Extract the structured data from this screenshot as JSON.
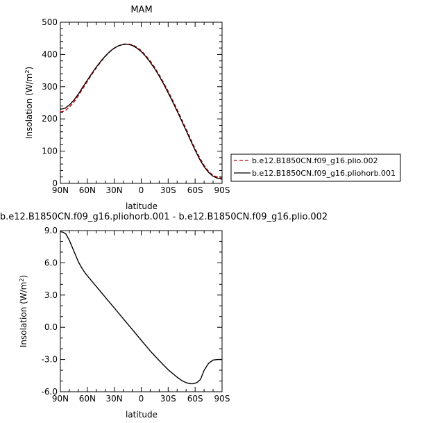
{
  "chart_data": [
    {
      "type": "line",
      "title": "MAM",
      "xlabel": "latitude",
      "ylabel": "Insolation (W/m²)",
      "ylabel_main": "Insolation (W/m",
      "ylabel_sup": "2",
      "ylabel_close": ")",
      "xlim": [
        90,
        -90
      ],
      "ylim": [
        0,
        500
      ],
      "x_ticks": [
        90,
        60,
        30,
        0,
        -30,
        -60,
        -90
      ],
      "x_tick_labels": [
        "90N",
        "60N",
        "30N",
        "0",
        "30S",
        "60S",
        "90S"
      ],
      "y_ticks": [
        0,
        100,
        200,
        300,
        400,
        500
      ],
      "y_tick_labels": [
        "0",
        "100",
        "200",
        "300",
        "400",
        "500"
      ],
      "legend_position": "right",
      "series": [
        {
          "name": "b.e12.B1850CN.f09_g16.plio.002",
          "color": "#cc0000",
          "dash": true,
          "x": [
            90,
            85,
            80,
            75,
            70,
            65,
            60,
            55,
            50,
            45,
            40,
            35,
            30,
            25,
            20,
            15,
            10,
            5,
            0,
            -5,
            -10,
            -15,
            -20,
            -25,
            -30,
            -35,
            -40,
            -45,
            -50,
            -55,
            -60,
            -65,
            -70,
            -75,
            -80,
            -85,
            -90
          ],
          "y": [
            221,
            225,
            236,
            252,
            272,
            294,
            316,
            338,
            358,
            377,
            394,
            408,
            419,
            427,
            432,
            433,
            430,
            423,
            412,
            397,
            380,
            360,
            337,
            312,
            286,
            258,
            229,
            199,
            169,
            138,
            108,
            80,
            56,
            37,
            25,
            19,
            16
          ]
        },
        {
          "name": "b.e12.B1850CN.f09_g16.pliohorb.001",
          "color": "#000000",
          "dash": false,
          "x": [
            90,
            85,
            80,
            75,
            70,
            65,
            60,
            55,
            50,
            45,
            40,
            35,
            30,
            25,
            20,
            15,
            10,
            5,
            0,
            -5,
            -10,
            -15,
            -20,
            -25,
            -30,
            -35,
            -40,
            -45,
            -50,
            -55,
            -60,
            -65,
            -70,
            -75,
            -80,
            -85,
            -90
          ],
          "y": [
            230,
            233,
            243,
            258,
            277,
            299,
            320,
            341,
            361,
            379,
            395,
            409,
            420,
            427,
            431,
            432,
            428,
            420,
            409,
            394,
            376,
            356,
            333,
            308,
            281,
            253,
            224,
            194,
            164,
            133,
            103,
            75,
            52,
            34,
            22,
            16,
            13
          ]
        }
      ]
    },
    {
      "type": "line",
      "title": "b.e12.B1850CN.f09_g16.pliohorb.001 - b.e12.B1850CN.f09_g16.plio.002",
      "xlabel": "latitude",
      "ylabel": "Insolation (W/m²)",
      "ylabel_main": "Insolation (W/m",
      "ylabel_sup": "2",
      "ylabel_close": ")",
      "xlim": [
        90,
        -90
      ],
      "ylim": [
        -6,
        9
      ],
      "x_ticks": [
        90,
        60,
        30,
        0,
        -30,
        -60,
        -90
      ],
      "x_tick_labels": [
        "90N",
        "60N",
        "30N",
        "0",
        "30S",
        "60S",
        "90S"
      ],
      "y_ticks": [
        -6,
        -3,
        0,
        3,
        6,
        9
      ],
      "y_tick_labels": [
        "-6.0",
        "-3.0",
        "0.0",
        "3.0",
        "6.0",
        "9.0"
      ],
      "series": [
        {
          "color": "#000000",
          "dash": false,
          "x": [
            90,
            87,
            84,
            80,
            75,
            70,
            66,
            62,
            56,
            50,
            40,
            30,
            20,
            10,
            0,
            -10,
            -20,
            -30,
            -40,
            -46,
            -50,
            -54,
            -58,
            -62,
            -66,
            -70,
            -75,
            -80,
            -85,
            -90
          ],
          "y": [
            8.9,
            8.85,
            8.7,
            8.1,
            7.1,
            6.1,
            5.5,
            5.0,
            4.4,
            3.8,
            2.8,
            1.8,
            0.8,
            -0.2,
            -1.2,
            -2.2,
            -3.1,
            -3.95,
            -4.65,
            -5.0,
            -5.15,
            -5.25,
            -5.25,
            -5.15,
            -4.85,
            -4.0,
            -3.35,
            -3.05,
            -3.0,
            -3.0
          ]
        }
      ]
    }
  ]
}
